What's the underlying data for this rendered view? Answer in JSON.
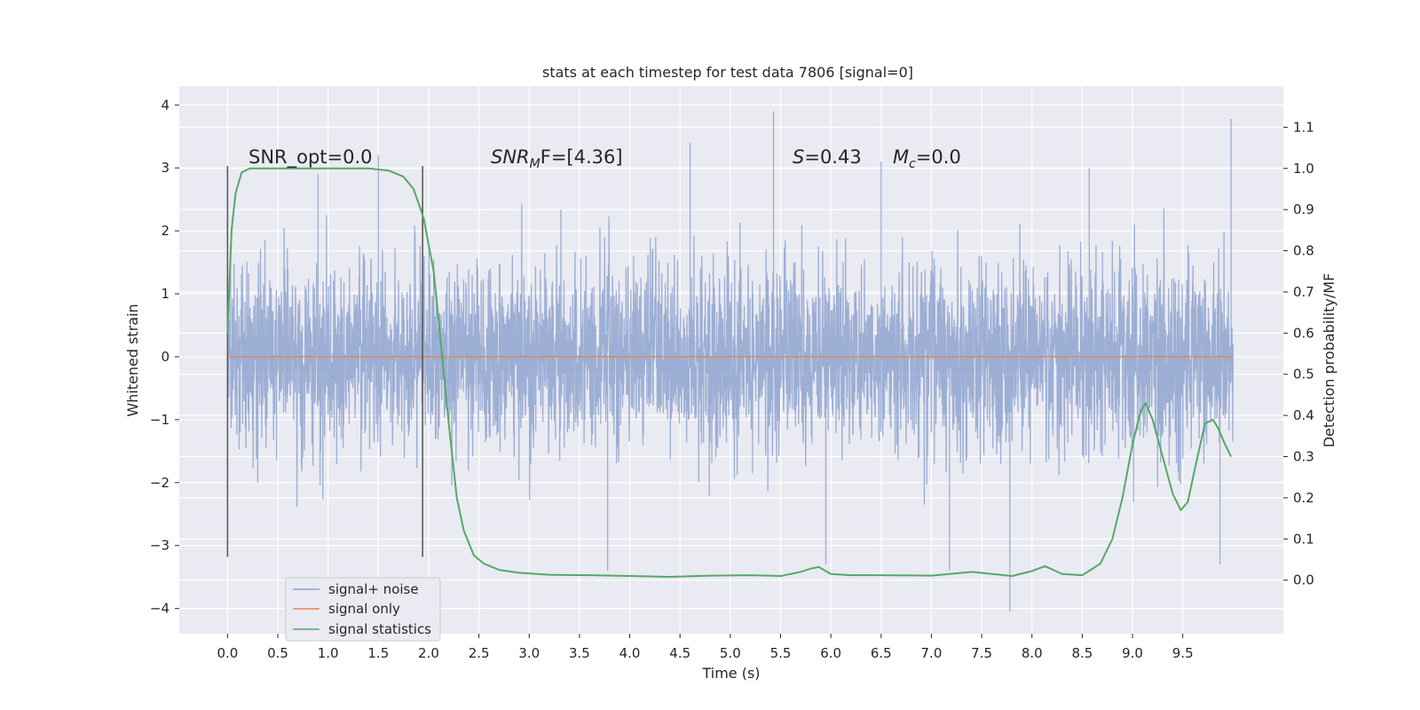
{
  "chart_data": {
    "type": "line",
    "title": "stats at each timestep for test data 7806 [signal=0]",
    "xlabel": "Time (s)",
    "ylabel_left": "Whitened strain",
    "ylabel_right": "Detection probability/MF",
    "xlim": [
      -0.48,
      10.5
    ],
    "ylim_left": [
      -4.4,
      4.3
    ],
    "ylim_right": [
      -0.13,
      1.2
    ],
    "grid": true,
    "legend_position": "lower-left",
    "x_ticks": [
      "0.0",
      "0.5",
      "1.0",
      "1.5",
      "2.0",
      "2.5",
      "3.0",
      "3.5",
      "4.0",
      "4.5",
      "5.0",
      "5.5",
      "6.0",
      "6.5",
      "7.0",
      "7.5",
      "8.0",
      "8.5",
      "9.0",
      "9.5"
    ],
    "y_ticks_left": [
      "4",
      "3",
      "2",
      "1",
      "0",
      "−1",
      "−2",
      "−3",
      "−4"
    ],
    "y_ticks_right": [
      "1.1",
      "1.0",
      "0.9",
      "0.8",
      "0.7",
      "0.6",
      "0.5",
      "0.4",
      "0.3",
      "0.2",
      "0.1",
      "0.0"
    ],
    "annotations": {
      "snr_opt": "SNR_opt=0.0",
      "snr_mf_pre": "SNR",
      "snr_mf_sub": "M",
      "snr_mf_post": "F=[4.36]",
      "s_label": "S",
      "s_value": "=0.43",
      "mc_label": "M",
      "mc_sub": "c",
      "mc_value": "=0.0"
    },
    "window_markers_x": [
      0.0,
      1.94
    ],
    "series": [
      {
        "name": "signal+ noise",
        "color": "#8ea3cf",
        "axis": "left",
        "x_range": [
          0.0,
          10.0
        ],
        "description_values": {
          "typical_range": [
            -1.3,
            1.2
          ],
          "extreme_peaks": [
            [
              0.03,
              1.75
            ],
            [
              0.9,
              2.9
            ],
            [
              1.5,
              3.2
            ],
            [
              4.6,
              3.4
            ],
            [
              5.43,
              3.9
            ],
            [
              5.95,
              -3.3
            ],
            [
              6.5,
              3.1
            ],
            [
              7.78,
              -4.05
            ],
            [
              8.57,
              3.0
            ],
            [
              9.87,
              -3.3
            ],
            [
              9.98,
              3.78
            ],
            [
              3.78,
              -3.4
            ],
            [
              7.18,
              -3.4
            ]
          ]
        }
      },
      {
        "name": "signal only",
        "color": "#dd8452",
        "axis": "left",
        "x": [
          0.0,
          10.0
        ],
        "y": [
          0.0,
          0.0
        ]
      },
      {
        "name": "signal statistics",
        "color": "#55a868",
        "axis": "right",
        "x": [
          0.0,
          0.04,
          0.08,
          0.14,
          0.22,
          0.35,
          0.6,
          1.0,
          1.4,
          1.6,
          1.75,
          1.85,
          1.95,
          2.05,
          2.12,
          2.2,
          2.28,
          2.35,
          2.45,
          2.55,
          2.7,
          2.9,
          3.2,
          3.6,
          4.0,
          4.4,
          4.8,
          5.2,
          5.5,
          5.7,
          5.8,
          5.88,
          6.0,
          6.2,
          6.5,
          7.0,
          7.4,
          7.8,
          8.0,
          8.13,
          8.3,
          8.5,
          8.68,
          8.8,
          8.9,
          9.0,
          9.08,
          9.13,
          9.2,
          9.3,
          9.4,
          9.48,
          9.55,
          9.62,
          9.72,
          9.8,
          9.85,
          9.92,
          9.98
        ],
        "y": [
          0.6,
          0.85,
          0.94,
          0.99,
          1.0,
          1.0,
          1.0,
          1.0,
          1.0,
          0.995,
          0.98,
          0.95,
          0.88,
          0.75,
          0.58,
          0.38,
          0.2,
          0.12,
          0.06,
          0.04,
          0.025,
          0.018,
          0.013,
          0.012,
          0.01,
          0.008,
          0.011,
          0.012,
          0.01,
          0.02,
          0.028,
          0.032,
          0.015,
          0.012,
          0.012,
          0.011,
          0.02,
          0.01,
          0.022,
          0.034,
          0.015,
          0.012,
          0.04,
          0.1,
          0.2,
          0.33,
          0.41,
          0.43,
          0.39,
          0.3,
          0.21,
          0.17,
          0.19,
          0.27,
          0.38,
          0.39,
          0.37,
          0.33,
          0.3
        ]
      }
    ]
  }
}
